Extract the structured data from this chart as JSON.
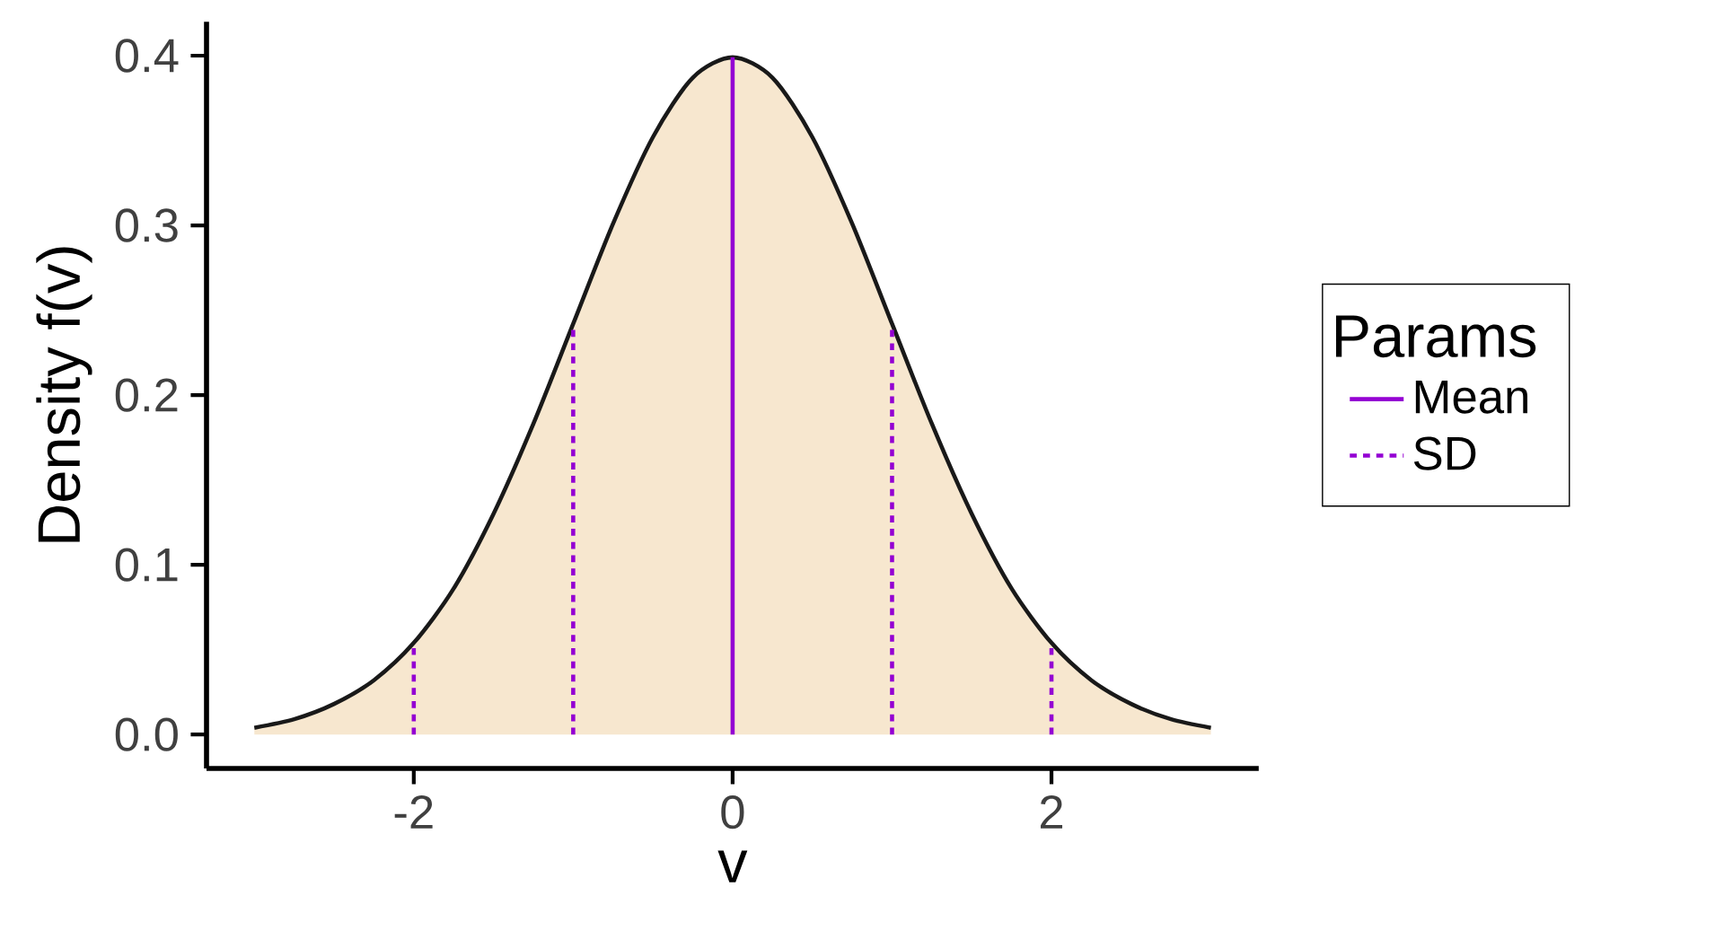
{
  "chart_data": {
    "type": "area",
    "xlabel": "v",
    "ylabel": "Density f(v)",
    "legend_title": "Params",
    "legend": "right",
    "xlim": [
      -3.3,
      3.3
    ],
    "ylim": [
      -0.02,
      0.42
    ],
    "xticks": [
      -2,
      0,
      2
    ],
    "yticks": [
      {
        "value": 0,
        "label": "0.0"
      },
      0.1,
      0.2,
      0.3,
      0.4
    ],
    "grid": false,
    "series": [
      {
        "color": "#f7e7cf",
        "x": [
          -3,
          -2.75,
          -2.5,
          -2.25,
          -2,
          -1.75,
          -1.5,
          -1.25,
          -1,
          -0.75,
          -0.5,
          -0.25,
          0,
          0.25,
          0.5,
          0.75,
          1,
          1.25,
          1.5,
          1.75,
          2,
          2.25,
          2.5,
          2.75,
          3
        ],
        "values": [
          0.004,
          0.009,
          0.018,
          0.032,
          0.054,
          0.086,
          0.13,
          0.183,
          0.242,
          0.301,
          0.352,
          0.387,
          0.399,
          0.387,
          0.352,
          0.301,
          0.242,
          0.183,
          0.13,
          0.086,
          0.054,
          0.032,
          0.018,
          0.009,
          0.004
        ]
      },
      {
        "type": "line",
        "name": "Mean",
        "color": "#9400d3",
        "line_style": "solid",
        "x": [
          0,
          0
        ],
        "values": [
          0,
          0.399
        ]
      },
      {
        "type": "line",
        "name": "SD",
        "color": "#9400d3",
        "line_style": "dashed",
        "x": [
          -2,
          -2,
          null,
          -1,
          -1,
          null,
          1,
          1,
          null,
          2,
          2
        ],
        "values": [
          0,
          0.054,
          null,
          0,
          0.242,
          null,
          0,
          0.242,
          null,
          0,
          0.054
        ]
      }
    ]
  }
}
